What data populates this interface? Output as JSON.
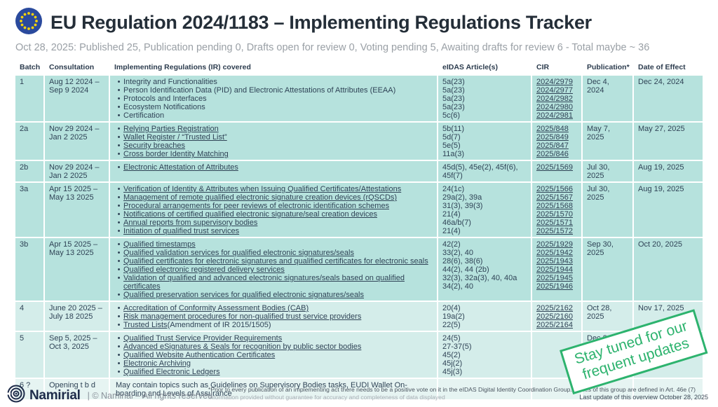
{
  "header": {
    "title": "EU Regulation 2024/1183 – Implementing Regulations Tracker",
    "subtitle": "Oct 28, 2025: Published 25, Publication pending 0, Drafts open for review 0, Voting pending 5, Awaiting drafts for review 6 - Total maybe ~ 36"
  },
  "colors": {
    "accent_green": "#2db36e",
    "row_published": "#b6e2dd",
    "row_recent": "#d4edea",
    "row_tbd": "#e6f4f2",
    "eu_flag_blue": "#2a4a9d",
    "eu_flag_stars": "#f7d308",
    "brand_navy": "#1e2c4a"
  },
  "table": {
    "columns": [
      "Batch",
      "Consultation",
      "Implementing Regulations (IR) covered",
      "eIDAS Article(s)",
      "CIR",
      "Publication*",
      "Date of Effect"
    ],
    "rows": [
      {
        "batch": "1",
        "consultation": "Aug 12 2024 –\nSep 9 2024",
        "tone": "dark",
        "items": [
          {
            "text": "Integrity and Functionalities",
            "link": false
          },
          {
            "text": "Person Identification Data (PID) and Electronic Attestations of Attributes (EEAA)",
            "link": false
          },
          {
            "text": "Protocols and Interfaces",
            "link": false
          },
          {
            "text": "Ecosystem Notifications",
            "link": false
          },
          {
            "text": "Certification",
            "link": false
          }
        ],
        "eidas": [
          "5a(23)",
          "5a(23)",
          "5a(23)",
          "5a(23)",
          "5c(6)"
        ],
        "cir": [
          "2024/2979",
          "2024/2977",
          "2024/2982",
          "2024/2980",
          "2024/2981"
        ],
        "publication": "Dec 4, 2024",
        "effect": "Dec 24, 2024"
      },
      {
        "batch": "2a",
        "consultation": "Nov 29 2024 –\nJan 2 2025",
        "tone": "dark",
        "items": [
          {
            "text": "Relying Parties Registration",
            "link": true
          },
          {
            "text": "Wallet Register / “Trusted List”",
            "link": true
          },
          {
            "text": "Security breaches",
            "link": true
          },
          {
            "text": "Cross border Identity Matching",
            "link": true
          }
        ],
        "eidas": [
          "5b(11)",
          "5d(7)",
          "5e(5)",
          "11a(3)"
        ],
        "cir": [
          "2025/848",
          "2025/849",
          "2025/847",
          "2025/846"
        ],
        "publication": "May 7, 2025",
        "effect": "May 27, 2025"
      },
      {
        "batch": "2b",
        "consultation": "Nov 29 2024 –\nJan 2 2025",
        "tone": "dark",
        "items": [
          {
            "text": "Electronic Attestation of Attributes",
            "link": true
          }
        ],
        "eidas": [
          "45d(5), 45e(2), 45f(6), 45f(7)"
        ],
        "cir": [
          "2025/1569"
        ],
        "publication": "Jul 30, 2025",
        "effect": "Aug 19, 2025"
      },
      {
        "batch": "3a",
        "consultation": "Apr 15 2025 –\nMay 13 2025",
        "tone": "dark",
        "items": [
          {
            "text": "Verification of Identity & Attributes when Issuing Qualified Certificates/Attestations",
            "link": true
          },
          {
            "text": "Management of remote qualified electronic signature creation devices (rQSCDs)",
            "link": true
          },
          {
            "text": "Procedural arrangements for peer reviews of electronic identification schemes",
            "link": true
          },
          {
            "text": "Notifications of certified qualified electronic signature/seal creation devices",
            "link": true
          },
          {
            "text": "Annual reports from supervisory bodies",
            "link": true
          },
          {
            "text": "Initiation of qualified trust services",
            "link": true
          }
        ],
        "eidas": [
          "24(1c)",
          "29a(2), 39a",
          "31(3), 39(3)",
          "21(4)",
          "46a/b(7)",
          "21(4)"
        ],
        "cir": [
          "2025/1566",
          "2025/1567",
          "2025/1568",
          "2025/1570",
          "2025/1571",
          "2025/1572"
        ],
        "publication": "Jul 30, 2025",
        "effect": "Aug 19, 2025"
      },
      {
        "batch": "3b",
        "consultation": "Apr 15 2025 –\nMay 13 2025",
        "tone": "dark",
        "items": [
          {
            "text": "Qualified timestamps",
            "link": true
          },
          {
            "text": "Qualified validation services for qualified electronic signatures/seals",
            "link": true
          },
          {
            "text": "Qualified certificates for electronic signatures and qualified certificates for electronic seals",
            "link": true
          },
          {
            "text": "Qualified electronic registered delivery services",
            "link": true
          },
          {
            "text": "Validation of qualified and advanced electronic signatures/seals based on qualified certificates",
            "link": true
          },
          {
            "text": "Qualified preservation services for qualified electronic signatures/seals",
            "link": true
          }
        ],
        "eidas": [
          "42(2)",
          "33(2), 40",
          "28(6), 38(6)",
          "44(2), 44 (2b)",
          "32(3), 32a(3), 40, 40a",
          "34(2), 40"
        ],
        "cir": [
          "2025/1929",
          "2025/1942",
          "2025/1943",
          "2025/1944",
          "2025/1945",
          "2025/1946"
        ],
        "publication": "Sep 30, 2025",
        "effect": "Oct 20, 2025"
      },
      {
        "batch": "4",
        "consultation": "June 20 2025 –\nJuly 18 2025",
        "tone": "mid",
        "items": [
          {
            "text": "Accreditation of Conformity Assessment Bodies (CAB)",
            "link": true
          },
          {
            "text": "Risk management procedures for non-qualified trust service providers",
            "link": true
          },
          {
            "text": "Trusted Lists ",
            "link": true,
            "suffix": " (Amendment of IR 2015/1505)"
          }
        ],
        "eidas": [
          "20(4)",
          "19a(2)",
          "22(5)"
        ],
        "cir": [
          "2025/2162",
          "2025/2160",
          "2025/2164"
        ],
        "publication": "Oct 28, 2025",
        "effect": "Nov 17, 2025"
      },
      {
        "batch": "5",
        "consultation": "Sep 5, 2025 –\nOct 3, 2025",
        "tone": "mid",
        "items": [
          {
            "text": "Qualified Trust Service Provider Requirements",
            "link": true
          },
          {
            "text": "Advanced eSignatures & Seals for recognition by public sector bodies",
            "link": true
          },
          {
            "text": "Qualified Website Authentication Certificates",
            "link": true
          },
          {
            "text": "Electronic Archiving",
            "link": true
          },
          {
            "text": "Qualified Electronic Ledgers",
            "link": true
          }
        ],
        "eidas": [
          "24(5)",
          "27-37(5)",
          "45(2)",
          "45j(2)",
          "45j(3)"
        ],
        "cir": [],
        "publication": "Dec ?",
        "effect": "?"
      },
      {
        "batch": "6 ?",
        "consultation": "Opening t b d",
        "tone": "light",
        "paragraph": "May contain topics such as Guidelines on Supervisory Bodies tasks, EUDI Wallet On-boarding and Levels of Assurance",
        "eidas": [],
        "cir": [],
        "publication": "",
        "effect": ""
      }
    ]
  },
  "stamp": {
    "line1": "Stay tuned for our",
    "line2": "frequent updates"
  },
  "footer": {
    "brand": "Namirial",
    "copyright": "| © Namirial – All rights reserved",
    "note1": "*Prior to every publication of  an implementing act there needs to be a positive vote on it in the eIDAS Digital Identity Coordination Group. (Roles of this group are defined in Art. 46e (7)",
    "note2": "Information provided without guarantee for accuracy and completeness of data displayed",
    "last_update": "Last update of this overview October 28, 2025"
  }
}
